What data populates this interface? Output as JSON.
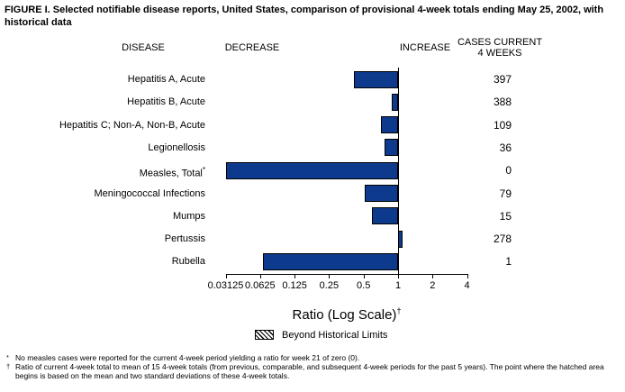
{
  "figure": {
    "title": "FIGURE I. Selected notifiable disease reports, United States, comparison of provisional 4-week totals ending May 25, 2002, with historical data",
    "columns": {
      "disease": "DISEASE",
      "decrease": "DECREASE",
      "increase": "INCREASE",
      "cases_line1": "CASES CURRENT",
      "cases_line2": "4 WEEKS"
    },
    "axis_label": "Ratio (Log Scale)",
    "axis_label_marker": "†",
    "legend": {
      "swatch": "diagonal-hatch-box",
      "label": "Beyond Historical Limits"
    },
    "footnotes": [
      {
        "marker": "*",
        "text": "No measles cases were reported for the current 4-week period yielding a ratio for week 21 of zero (0)."
      },
      {
        "marker": "†",
        "text": "Ratio of current 4-week total to mean of 15 4-week totals (from previous, comparable, and subsequent 4-week periods for the past 5 years). The point where the hatched area begins is based on the mean and two standard deviations of these 4-week totals."
      }
    ],
    "colors": {
      "bar_fill": "#0e3a8d",
      "bar_border": "#000000",
      "axis": "#000000",
      "text": "#000000",
      "background": "#ffffff"
    }
  },
  "chart_data": {
    "type": "bar",
    "orientation": "horizontal",
    "x_scale": "log2",
    "baseline": 1,
    "xlim": [
      0.03125,
      4
    ],
    "x_ticks": [
      0.03125,
      0.0625,
      0.125,
      0.25,
      0.5,
      1,
      2,
      4
    ],
    "x_tick_labels": [
      "0.03125",
      "0.0625",
      "0.125",
      "0.25",
      "0.5",
      "1",
      "2",
      "4"
    ],
    "rows": [
      {
        "disease": "Hepatitis A, Acute",
        "marker": "",
        "ratio": 0.41,
        "cases": "397"
      },
      {
        "disease": "Hepatitis B, Acute",
        "marker": "",
        "ratio": 0.88,
        "cases": "388"
      },
      {
        "disease": "Hepatitis C; Non-A, Non-B, Acute",
        "marker": "",
        "ratio": 0.71,
        "cases": "109"
      },
      {
        "disease": "Legionellosis",
        "marker": "",
        "ratio": 0.76,
        "cases": "36"
      },
      {
        "disease": "Measles, Total",
        "marker": "*",
        "ratio": 0,
        "cases": "0"
      },
      {
        "disease": "Meningococcal Infections",
        "marker": "",
        "ratio": 0.51,
        "cases": "79"
      },
      {
        "disease": "Mumps",
        "marker": "",
        "ratio": 0.59,
        "cases": "15"
      },
      {
        "disease": "Pertussis",
        "marker": "",
        "ratio": 1.1,
        "cases": "278"
      },
      {
        "disease": "Rubella",
        "marker": "",
        "ratio": 0.066,
        "cases": "1"
      }
    ]
  }
}
